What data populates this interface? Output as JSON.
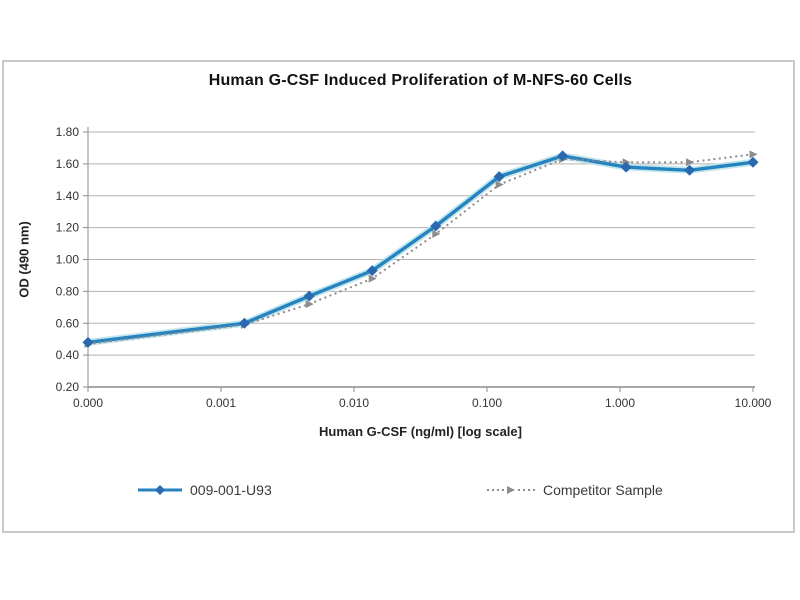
{
  "chart_data": {
    "type": "line",
    "title": "Human G-CSF Induced Proliferation of M-NFS-60 Cells",
    "xlabel": "Human G-CSF (ng/ml) [log scale]",
    "ylabel": "OD (490 nm)",
    "x_scale": "log",
    "grid": "horizontal",
    "legend_position": "bottom",
    "ylim": [
      0.2,
      1.8
    ],
    "y_tick_labels": [
      "1.80",
      "1.60",
      "1.40",
      "1.20",
      "1.00",
      "0.80",
      "0.60",
      "0.40",
      "0.20"
    ],
    "x_tick_labels": [
      "0.000",
      "0.001",
      "0.010",
      "0.100",
      "1.000",
      "10.000"
    ],
    "x": [
      0,
      0.0015,
      0.0046,
      0.0137,
      0.0412,
      0.1235,
      0.3704,
      1.111,
      3.333,
      10
    ],
    "series": [
      {
        "name": "009-001-U93",
        "line_style": "solid",
        "marker": "diamond",
        "color": "#2583c0",
        "halo_color": "#b9e2ea",
        "marker_color": "#2a69b0",
        "values": [
          0.48,
          0.6,
          0.77,
          0.93,
          1.21,
          1.52,
          1.65,
          1.58,
          1.56,
          1.61
        ]
      },
      {
        "name": "Competitor Sample",
        "line_style": "dotted",
        "marker": "triangle-right",
        "color": "#8c8c8c",
        "marker_color": "#8c8c8c",
        "values": [
          0.47,
          0.59,
          0.72,
          0.88,
          1.16,
          1.47,
          1.63,
          1.61,
          1.61,
          1.66
        ]
      }
    ]
  },
  "colors": {
    "gridline": "#b3b3b3",
    "axis": "#8c8c8c",
    "frame_border": "#c9c9c9",
    "title": "#111111",
    "tick_label": "#333333",
    "legend_text": "#3a3a3a"
  }
}
